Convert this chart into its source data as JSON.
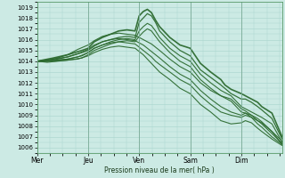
{
  "bg_color": "#cceae4",
  "grid_color": "#a8d4cc",
  "line_color": "#2d6b30",
  "xlabel": "Pression niveau de la mer( hPa )",
  "ylim": [
    1005.5,
    1019.5
  ],
  "yticks": [
    1006,
    1007,
    1008,
    1009,
    1010,
    1011,
    1012,
    1013,
    1014,
    1015,
    1016,
    1017,
    1018,
    1019
  ],
  "day_labels": [
    "Mer",
    "Jeu",
    "Ven",
    "Sam",
    "Dim"
  ],
  "day_positions": [
    0,
    0.25,
    0.5,
    0.75,
    1.0
  ],
  "xlim": [
    0,
    1.2
  ],
  "lines": [
    {
      "pts": [
        [
          0,
          1014
        ],
        [
          0.08,
          1014.3
        ],
        [
          0.15,
          1014.6
        ],
        [
          0.22,
          1015.0
        ],
        [
          0.25,
          1015.2
        ],
        [
          0.28,
          1015.8
        ],
        [
          0.32,
          1016.2
        ],
        [
          0.36,
          1016.5
        ],
        [
          0.4,
          1016.8
        ],
        [
          0.44,
          1016.9
        ],
        [
          0.48,
          1016.8
        ],
        [
          0.5,
          1018.2
        ],
        [
          0.52,
          1018.6
        ],
        [
          0.54,
          1018.8
        ],
        [
          0.56,
          1018.5
        ],
        [
          0.58,
          1017.8
        ],
        [
          0.6,
          1017.2
        ],
        [
          0.65,
          1016.2
        ],
        [
          0.7,
          1015.5
        ],
        [
          0.75,
          1015.2
        ],
        [
          0.8,
          1013.8
        ],
        [
          0.85,
          1013.0
        ],
        [
          0.9,
          1012.3
        ],
        [
          0.92,
          1011.8
        ],
        [
          0.95,
          1011.4
        ],
        [
          1.0,
          1011.0
        ],
        [
          1.02,
          1010.8
        ],
        [
          1.05,
          1010.5
        ],
        [
          1.08,
          1010.2
        ],
        [
          1.1,
          1009.8
        ],
        [
          1.15,
          1009.2
        ],
        [
          1.2,
          1007.0
        ]
      ],
      "lw": 1.2
    },
    {
      "pts": [
        [
          0,
          1014
        ],
        [
          0.08,
          1014.2
        ],
        [
          0.15,
          1014.4
        ],
        [
          0.22,
          1014.8
        ],
        [
          0.25,
          1015.0
        ],
        [
          0.28,
          1015.4
        ],
        [
          0.32,
          1015.8
        ],
        [
          0.36,
          1016.0
        ],
        [
          0.4,
          1016.2
        ],
        [
          0.44,
          1016.3
        ],
        [
          0.48,
          1016.2
        ],
        [
          0.5,
          1017.6
        ],
        [
          0.52,
          1018.0
        ],
        [
          0.54,
          1018.4
        ],
        [
          0.56,
          1018.2
        ],
        [
          0.58,
          1017.6
        ],
        [
          0.6,
          1016.8
        ],
        [
          0.65,
          1015.8
        ],
        [
          0.7,
          1015.0
        ],
        [
          0.75,
          1014.5
        ],
        [
          0.8,
          1013.2
        ],
        [
          0.85,
          1012.5
        ],
        [
          0.9,
          1011.8
        ],
        [
          0.95,
          1011.0
        ],
        [
          1.0,
          1010.5
        ],
        [
          1.02,
          1010.5
        ],
        [
          1.05,
          1010.2
        ],
        [
          1.08,
          1009.8
        ],
        [
          1.1,
          1009.5
        ],
        [
          1.15,
          1008.7
        ],
        [
          1.2,
          1006.8
        ]
      ],
      "lw": 0.9
    },
    {
      "pts": [
        [
          0,
          1014
        ],
        [
          0.08,
          1014.1
        ],
        [
          0.15,
          1014.2
        ],
        [
          0.22,
          1014.5
        ],
        [
          0.25,
          1014.8
        ],
        [
          0.28,
          1015.2
        ],
        [
          0.32,
          1015.5
        ],
        [
          0.36,
          1015.8
        ],
        [
          0.4,
          1016.0
        ],
        [
          0.44,
          1016.1
        ],
        [
          0.48,
          1016.0
        ],
        [
          0.5,
          1016.8
        ],
        [
          0.52,
          1017.2
        ],
        [
          0.54,
          1017.5
        ],
        [
          0.56,
          1017.3
        ],
        [
          0.58,
          1016.8
        ],
        [
          0.6,
          1016.2
        ],
        [
          0.65,
          1015.2
        ],
        [
          0.7,
          1014.5
        ],
        [
          0.75,
          1014.0
        ],
        [
          0.8,
          1012.8
        ],
        [
          0.85,
          1012.0
        ],
        [
          0.9,
          1011.3
        ],
        [
          0.95,
          1010.8
        ],
        [
          1.0,
          1009.8
        ],
        [
          1.02,
          1009.6
        ],
        [
          1.05,
          1009.3
        ],
        [
          1.08,
          1009.0
        ],
        [
          1.1,
          1008.8
        ],
        [
          1.15,
          1008.2
        ],
        [
          1.2,
          1006.5
        ]
      ],
      "lw": 0.8
    },
    {
      "pts": [
        [
          0,
          1014
        ],
        [
          0.08,
          1014.0
        ],
        [
          0.15,
          1014.1
        ],
        [
          0.22,
          1014.3
        ],
        [
          0.25,
          1014.6
        ],
        [
          0.28,
          1015.0
        ],
        [
          0.32,
          1015.3
        ],
        [
          0.36,
          1015.6
        ],
        [
          0.4,
          1015.8
        ],
        [
          0.44,
          1015.9
        ],
        [
          0.48,
          1015.8
        ],
        [
          0.5,
          1016.3
        ],
        [
          0.52,
          1016.7
        ],
        [
          0.54,
          1017.0
        ],
        [
          0.56,
          1016.8
        ],
        [
          0.58,
          1016.3
        ],
        [
          0.6,
          1015.8
        ],
        [
          0.65,
          1014.8
        ],
        [
          0.7,
          1014.0
        ],
        [
          0.75,
          1013.5
        ],
        [
          0.8,
          1012.3
        ],
        [
          0.85,
          1011.5
        ],
        [
          0.9,
          1010.8
        ],
        [
          0.95,
          1010.3
        ],
        [
          1.0,
          1009.3
        ],
        [
          1.02,
          1009.2
        ],
        [
          1.05,
          1008.8
        ],
        [
          1.08,
          1008.5
        ],
        [
          1.1,
          1008.3
        ],
        [
          1.15,
          1007.5
        ],
        [
          1.2,
          1006.3
        ]
      ],
      "lw": 0.8
    },
    {
      "pts": [
        [
          0,
          1014
        ],
        [
          0.05,
          1014.1
        ],
        [
          0.1,
          1014.3
        ],
        [
          0.15,
          1014.6
        ],
        [
          0.2,
          1015.1
        ],
        [
          0.25,
          1015.5
        ],
        [
          0.28,
          1015.9
        ],
        [
          0.32,
          1016.3
        ],
        [
          0.36,
          1016.5
        ],
        [
          0.4,
          1016.6
        ],
        [
          0.44,
          1016.5
        ],
        [
          0.48,
          1016.4
        ],
        [
          0.5,
          1016.2
        ],
        [
          0.52,
          1016.0
        ],
        [
          0.54,
          1015.8
        ],
        [
          0.56,
          1015.6
        ],
        [
          0.58,
          1015.3
        ],
        [
          0.6,
          1015.0
        ],
        [
          0.65,
          1014.2
        ],
        [
          0.7,
          1013.5
        ],
        [
          0.75,
          1013.0
        ],
        [
          0.8,
          1012.0
        ],
        [
          0.85,
          1011.3
        ],
        [
          0.9,
          1010.8
        ],
        [
          0.95,
          1010.5
        ],
        [
          1.0,
          1009.6
        ],
        [
          1.02,
          1009.4
        ],
        [
          1.05,
          1009.0
        ],
        [
          1.08,
          1008.7
        ],
        [
          1.1,
          1008.4
        ],
        [
          1.15,
          1007.5
        ],
        [
          1.2,
          1006.6
        ]
      ],
      "lw": 0.8
    },
    {
      "pts": [
        [
          0,
          1014
        ],
        [
          0.05,
          1014.0
        ],
        [
          0.1,
          1014.2
        ],
        [
          0.15,
          1014.4
        ],
        [
          0.2,
          1014.7
        ],
        [
          0.25,
          1015.1
        ],
        [
          0.28,
          1015.5
        ],
        [
          0.32,
          1015.8
        ],
        [
          0.36,
          1016.0
        ],
        [
          0.4,
          1016.1
        ],
        [
          0.44,
          1016.0
        ],
        [
          0.48,
          1015.9
        ],
        [
          0.5,
          1015.7
        ],
        [
          0.52,
          1015.5
        ],
        [
          0.54,
          1015.2
        ],
        [
          0.56,
          1014.9
        ],
        [
          0.58,
          1014.6
        ],
        [
          0.6,
          1014.3
        ],
        [
          0.65,
          1013.5
        ],
        [
          0.7,
          1012.8
        ],
        [
          0.75,
          1012.3
        ],
        [
          0.8,
          1011.3
        ],
        [
          0.85,
          1010.5
        ],
        [
          0.9,
          1009.8
        ],
        [
          0.95,
          1009.3
        ],
        [
          1.0,
          1009.0
        ],
        [
          1.02,
          1009.2
        ],
        [
          1.05,
          1009.0
        ],
        [
          1.08,
          1008.5
        ],
        [
          1.1,
          1008.2
        ],
        [
          1.15,
          1007.3
        ],
        [
          1.2,
          1006.4
        ]
      ],
      "lw": 0.8
    },
    {
      "pts": [
        [
          0,
          1014
        ],
        [
          0.05,
          1014.0
        ],
        [
          0.1,
          1014.1
        ],
        [
          0.15,
          1014.2
        ],
        [
          0.2,
          1014.4
        ],
        [
          0.25,
          1014.8
        ],
        [
          0.28,
          1015.2
        ],
        [
          0.32,
          1015.5
        ],
        [
          0.36,
          1015.7
        ],
        [
          0.4,
          1015.8
        ],
        [
          0.44,
          1015.7
        ],
        [
          0.48,
          1015.6
        ],
        [
          0.5,
          1015.3
        ],
        [
          0.52,
          1015.0
        ],
        [
          0.54,
          1014.7
        ],
        [
          0.56,
          1014.4
        ],
        [
          0.58,
          1014.0
        ],
        [
          0.6,
          1013.7
        ],
        [
          0.65,
          1013.0
        ],
        [
          0.7,
          1012.3
        ],
        [
          0.75,
          1011.8
        ],
        [
          0.8,
          1010.8
        ],
        [
          0.85,
          1010.0
        ],
        [
          0.9,
          1009.3
        ],
        [
          0.95,
          1009.0
        ],
        [
          1.0,
          1008.8
        ],
        [
          1.02,
          1009.0
        ],
        [
          1.05,
          1008.8
        ],
        [
          1.08,
          1008.2
        ],
        [
          1.1,
          1007.9
        ],
        [
          1.15,
          1007.0
        ],
        [
          1.2,
          1006.3
        ]
      ],
      "lw": 0.8
    },
    {
      "pts": [
        [
          0,
          1014
        ],
        [
          0.05,
          1013.9
        ],
        [
          0.1,
          1014.0
        ],
        [
          0.15,
          1014.1
        ],
        [
          0.2,
          1014.2
        ],
        [
          0.25,
          1014.5
        ],
        [
          0.28,
          1014.8
        ],
        [
          0.32,
          1015.1
        ],
        [
          0.36,
          1015.3
        ],
        [
          0.4,
          1015.4
        ],
        [
          0.44,
          1015.3
        ],
        [
          0.48,
          1015.2
        ],
        [
          0.5,
          1014.9
        ],
        [
          0.52,
          1014.6
        ],
        [
          0.54,
          1014.2
        ],
        [
          0.56,
          1013.8
        ],
        [
          0.58,
          1013.4
        ],
        [
          0.6,
          1013.0
        ],
        [
          0.65,
          1012.3
        ],
        [
          0.7,
          1011.5
        ],
        [
          0.75,
          1011.0
        ],
        [
          0.8,
          1010.0
        ],
        [
          0.85,
          1009.3
        ],
        [
          0.9,
          1008.5
        ],
        [
          0.95,
          1008.2
        ],
        [
          1.0,
          1008.3
        ],
        [
          1.02,
          1008.5
        ],
        [
          1.05,
          1008.3
        ],
        [
          1.08,
          1007.8
        ],
        [
          1.1,
          1007.5
        ],
        [
          1.15,
          1006.8
        ],
        [
          1.2,
          1006.2
        ]
      ],
      "lw": 0.8
    }
  ]
}
